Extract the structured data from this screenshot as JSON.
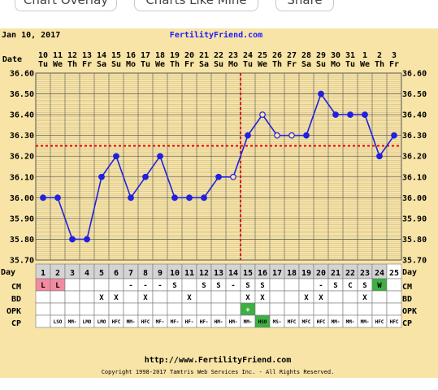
{
  "topbar": {
    "buttons": [
      "Chart Overlay",
      "Charts Like Mine",
      "Share"
    ]
  },
  "header": {
    "date": "Jan 10, 2017",
    "site": "FertilityFriend.com"
  },
  "row_labels": {
    "date": "Date",
    "day": "Day",
    "cm": "CM",
    "bd": "BD",
    "opk": "OPK",
    "cp": "CP"
  },
  "colors": {
    "background": "#f8e4a6",
    "grid": "#555555",
    "line": "#2020e0",
    "coverline": "#e00000",
    "period": "#f28aa0",
    "positive": "#3cb043",
    "site_text": "#1a1aff"
  },
  "dates": [
    {
      "num": "10",
      "dow": "Tu"
    },
    {
      "num": "11",
      "dow": "We"
    },
    {
      "num": "12",
      "dow": "Th"
    },
    {
      "num": "13",
      "dow": "Fr"
    },
    {
      "num": "14",
      "dow": "Sa"
    },
    {
      "num": "15",
      "dow": "Su"
    },
    {
      "num": "16",
      "dow": "Mo"
    },
    {
      "num": "17",
      "dow": "Tu"
    },
    {
      "num": "18",
      "dow": "We"
    },
    {
      "num": "19",
      "dow": "Th"
    },
    {
      "num": "20",
      "dow": "Fr"
    },
    {
      "num": "21",
      "dow": "Sa"
    },
    {
      "num": "22",
      "dow": "Su"
    },
    {
      "num": "23",
      "dow": "Mo"
    },
    {
      "num": "24",
      "dow": "Tu"
    },
    {
      "num": "25",
      "dow": "We"
    },
    {
      "num": "26",
      "dow": "Th"
    },
    {
      "num": "27",
      "dow": "Fr"
    },
    {
      "num": "28",
      "dow": "Sa"
    },
    {
      "num": "29",
      "dow": "Su"
    },
    {
      "num": "30",
      "dow": "Mo"
    },
    {
      "num": "31",
      "dow": "Tu"
    },
    {
      "num": "1",
      "dow": "We"
    },
    {
      "num": "2",
      "dow": "Th"
    },
    {
      "num": "3",
      "dow": "Fr"
    }
  ],
  "chart_data": {
    "type": "line",
    "y_ticks": [
      "36.60",
      "36.50",
      "36.40",
      "36.30",
      "36.20",
      "36.10",
      "36.00",
      "35.90",
      "35.80",
      "35.70"
    ],
    "ylim": [
      35.7,
      36.6
    ],
    "x": [
      1,
      2,
      3,
      4,
      5,
      6,
      7,
      8,
      9,
      10,
      11,
      12,
      13,
      14,
      15,
      16,
      17,
      18,
      19,
      20,
      21,
      22,
      23,
      24,
      25
    ],
    "temps": [
      36.0,
      36.0,
      35.8,
      35.8,
      36.1,
      36.2,
      36.0,
      36.1,
      36.2,
      36.0,
      36.0,
      36.0,
      36.1,
      36.1,
      36.3,
      36.4,
      36.3,
      36.3,
      36.3,
      36.5,
      36.4,
      36.4,
      36.4,
      36.2,
      36.3
    ],
    "open_points": [
      14,
      16,
      17,
      18
    ],
    "coverline": 36.25,
    "ovulation_line_day": 14.5
  },
  "days": [
    "1",
    "2",
    "3",
    "4",
    "5",
    "6",
    "7",
    "8",
    "9",
    "10",
    "11",
    "12",
    "13",
    "14",
    "15",
    "16",
    "17",
    "18",
    "19",
    "20",
    "21",
    "22",
    "23",
    "24",
    "25"
  ],
  "cm": [
    "L",
    "L",
    "",
    "",
    "",
    "",
    "-",
    "-",
    "-",
    "S",
    "",
    "S",
    "S",
    "-",
    "S",
    "S",
    "",
    "",
    "",
    "-",
    "S",
    "C",
    "S",
    "W",
    ""
  ],
  "bd": [
    "",
    "",
    "",
    "",
    "X",
    "X",
    "",
    "X",
    "",
    "",
    "X",
    "",
    "",
    "",
    "X",
    "X",
    "",
    "",
    "X",
    "X",
    "",
    "",
    "X",
    "",
    ""
  ],
  "opk": [
    "",
    "",
    "",
    "",
    "",
    "",
    "",
    "",
    "",
    "",
    "",
    "",
    "",
    "",
    "+",
    "",
    "",
    "",
    "",
    "",
    "",
    "",
    "",
    "",
    ""
  ],
  "cp": [
    "",
    "LSO",
    "MM-",
    "LMO",
    "LMO",
    "HFC",
    "MM-",
    "HFC",
    "MF-",
    "MF-",
    "HF-",
    "HF-",
    "HM-",
    "HM-",
    "MM-",
    "HSO",
    "MS-",
    "MFC",
    "MFC",
    "HFC",
    "MM-",
    "MM-",
    "MM-",
    "HFC",
    "HFC"
  ],
  "footer": {
    "url": "http://www.FertilityFriend.com",
    "copyright": "Copyright 1998-2017 Tamtris Web Services Inc. - All Rights Reserved."
  }
}
